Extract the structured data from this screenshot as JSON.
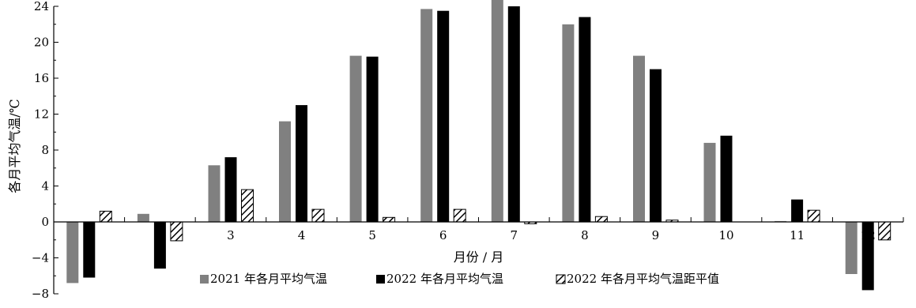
{
  "chart_data": {
    "type": "bar",
    "categories": [
      "1",
      "2",
      "3",
      "4",
      "5",
      "6",
      "7",
      "8",
      "9",
      "10",
      "11",
      "12"
    ],
    "series": [
      {
        "name": "2021 年各月平均气温",
        "color": "#808080",
        "pattern": "solid",
        "values": [
          -6.8,
          0.9,
          6.3,
          11.2,
          18.5,
          23.7,
          25.0,
          22.0,
          18.5,
          8.8,
          0.1,
          -5.8
        ]
      },
      {
        "name": "2022 年各月平均气温",
        "color": "#000000",
        "pattern": "solid",
        "values": [
          -6.2,
          -5.2,
          7.2,
          13.0,
          18.4,
          23.5,
          24.0,
          22.8,
          17.0,
          9.6,
          2.5,
          -7.6
        ]
      },
      {
        "name": "2022 年各月平均气温距平值",
        "color": "#000000",
        "pattern": "hatch",
        "values": [
          1.2,
          -2.1,
          3.6,
          1.4,
          0.5,
          1.4,
          -0.2,
          0.6,
          0.2,
          0.0,
          1.3,
          -2.0
        ]
      }
    ],
    "xlabel": "月份 / 月",
    "ylabel": "各月平均气温/℃",
    "ylim": [
      -8,
      24
    ],
    "yticks": [
      -8,
      -4,
      0,
      4,
      8,
      12,
      16,
      20,
      24
    ],
    "grid": false,
    "legend_position": "bottom-center"
  }
}
